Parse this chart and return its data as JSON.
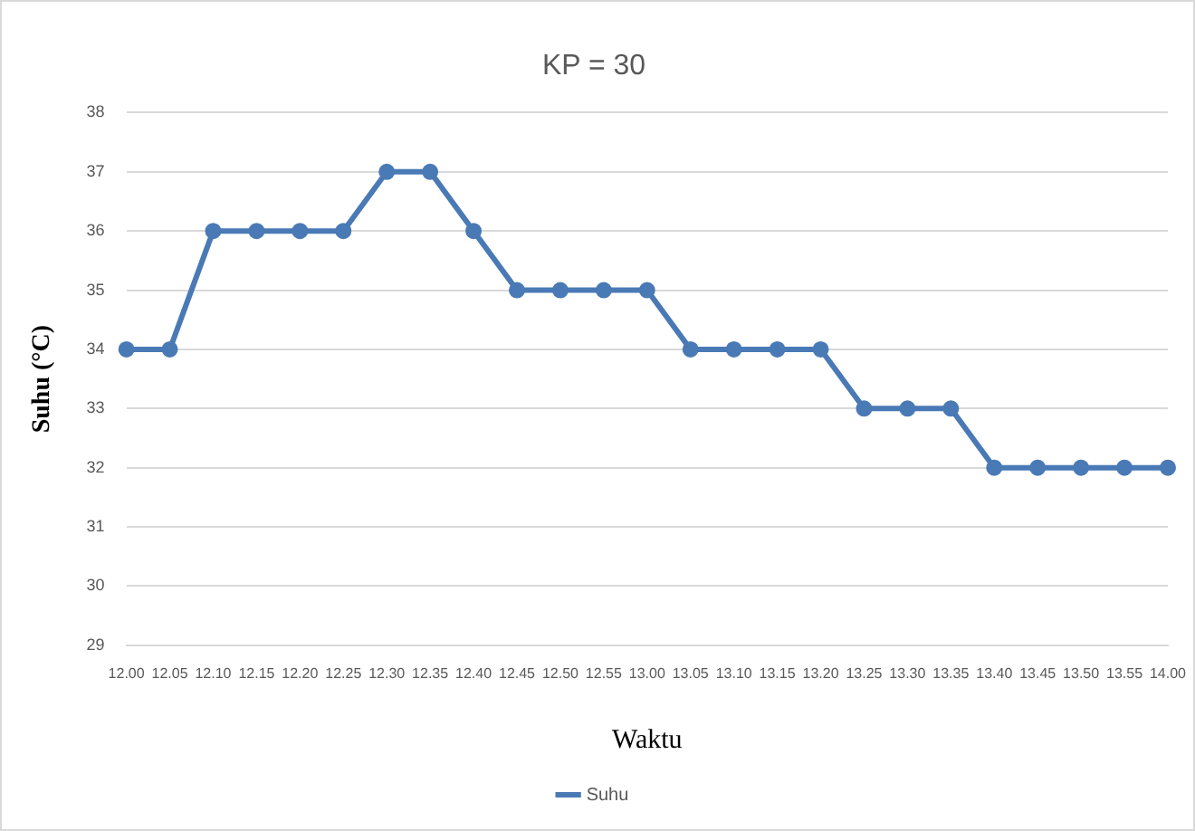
{
  "chart_data": {
    "type": "line",
    "title": "KP = 30",
    "xlabel": "Waktu",
    "ylabel": "Suhu (°C)",
    "categories": [
      "12.00",
      "12.05",
      "12.10",
      "12.15",
      "12.20",
      "12.25",
      "12.30",
      "12.35",
      "12.40",
      "12.45",
      "12.50",
      "12.55",
      "13.00",
      "13.05",
      "13.10",
      "13.15",
      "13.20",
      "13.25",
      "13.30",
      "13.35",
      "13.40",
      "13.45",
      "13.50",
      "13.55",
      "14.00"
    ],
    "series": [
      {
        "name": "Suhu",
        "color": "#4a7ab5",
        "values": [
          34,
          34,
          36,
          36,
          36,
          36,
          37,
          37,
          36,
          35,
          35,
          35,
          35,
          34,
          34,
          34,
          34,
          33,
          33,
          33,
          32,
          32,
          32,
          32,
          32
        ]
      }
    ],
    "ylim": [
      29,
      38
    ],
    "yticks": [
      29,
      30,
      31,
      32,
      33,
      34,
      35,
      36,
      37,
      38
    ],
    "grid": "y",
    "legend": "bottom",
    "marker": "circle",
    "line_style": "solid"
  }
}
